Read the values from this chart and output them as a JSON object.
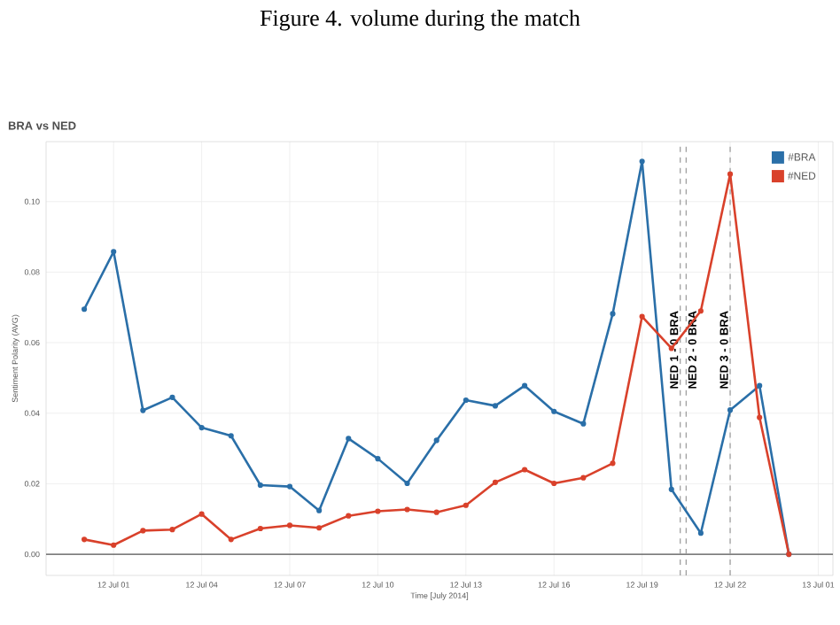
{
  "chart_data": {
    "type": "line",
    "title": "Figure 4. volume during the match",
    "subtitle": "BRA vs NED",
    "xlabel": "Time [July 2014]",
    "ylabel": "Sentiment Polarity (AVG)",
    "x": [
      "2014-07-12T00:00",
      "2014-07-12T01:00",
      "2014-07-12T02:00",
      "2014-07-12T03:00",
      "2014-07-12T04:00",
      "2014-07-12T05:00",
      "2014-07-12T06:00",
      "2014-07-12T07:00",
      "2014-07-12T08:00",
      "2014-07-12T09:00",
      "2014-07-12T10:00",
      "2014-07-12T11:00",
      "2014-07-12T12:00",
      "2014-07-12T13:00",
      "2014-07-12T14:00",
      "2014-07-12T15:00",
      "2014-07-12T16:00",
      "2014-07-12T17:00",
      "2014-07-12T18:00",
      "2014-07-12T19:00",
      "2014-07-12T20:00",
      "2014-07-12T21:00",
      "2014-07-12T22:00",
      "2014-07-12T23:00",
      "2014-07-13T00:00"
    ],
    "series": [
      {
        "name": "#BRA",
        "color": "#2a6fa8",
        "values": [
          0.0695,
          0.0858,
          0.0408,
          0.0445,
          0.0359,
          0.0336,
          0.0196,
          0.0192,
          0.0124,
          0.0328,
          0.0271,
          0.0201,
          0.0323,
          0.0437,
          0.0421,
          0.0478,
          0.0405,
          0.037,
          0.0682,
          0.1114,
          0.0184,
          0.006,
          0.0409,
          0.0478,
          0.0
        ]
      },
      {
        "name": "#NED",
        "color": "#d9412b",
        "values": [
          0.0042,
          0.0026,
          0.0067,
          0.007,
          0.0114,
          0.0042,
          0.0073,
          0.0082,
          0.0075,
          0.0109,
          0.0122,
          0.0127,
          0.0119,
          0.0139,
          0.0204,
          0.024,
          0.0201,
          0.0217,
          0.0258,
          0.0674,
          0.0584,
          0.069,
          0.1078,
          0.0388,
          0.0
        ]
      }
    ],
    "xlim": [
      "2014-07-11T22:42",
      "2014-07-13T01:30"
    ],
    "ylim": [
      -0.006,
      0.117
    ],
    "xticks": [
      {
        "value": "2014-07-12T01:00",
        "label": "12 Jul 01"
      },
      {
        "value": "2014-07-12T04:00",
        "label": "12 Jul 04"
      },
      {
        "value": "2014-07-12T07:00",
        "label": "12 Jul 07"
      },
      {
        "value": "2014-07-12T10:00",
        "label": "12 Jul 10"
      },
      {
        "value": "2014-07-12T13:00",
        "label": "12 Jul 13"
      },
      {
        "value": "2014-07-12T16:00",
        "label": "12 Jul 16"
      },
      {
        "value": "2014-07-12T19:00",
        "label": "12 Jul 19"
      },
      {
        "value": "2014-07-12T22:00",
        "label": "12 Jul 22"
      },
      {
        "value": "2014-07-13T01:00",
        "label": "13 Jul 01"
      }
    ],
    "yticks": [
      {
        "value": 0,
        "label": "0.00"
      },
      {
        "value": 0.02,
        "label": "0.02"
      },
      {
        "value": 0.04,
        "label": "0.04"
      },
      {
        "value": 0.06,
        "label": "0.06"
      },
      {
        "value": 0.08,
        "label": "0.08"
      },
      {
        "value": 0.1,
        "label": "0.10"
      }
    ],
    "ref_lines": [
      {
        "axis": "y",
        "value": 0,
        "color": "#555555"
      },
      {
        "axis": "x",
        "value": "2014-07-12T20:18",
        "label": "NED 1 - 0 BRA",
        "color": "#999999",
        "line_style": "dashed"
      },
      {
        "axis": "x",
        "value": "2014-07-12T20:30",
        "label": "NED 2 - 0 BRA",
        "color": "#999999",
        "line_style": "dashed"
      },
      {
        "axis": "x",
        "value": "2014-07-12T22:00",
        "label": "NED 3 - 0 BRA",
        "color": "#999999",
        "line_style": "dashed"
      }
    ],
    "grid": true,
    "legend": "top right",
    "marker": "circle",
    "line_style": "solid"
  }
}
